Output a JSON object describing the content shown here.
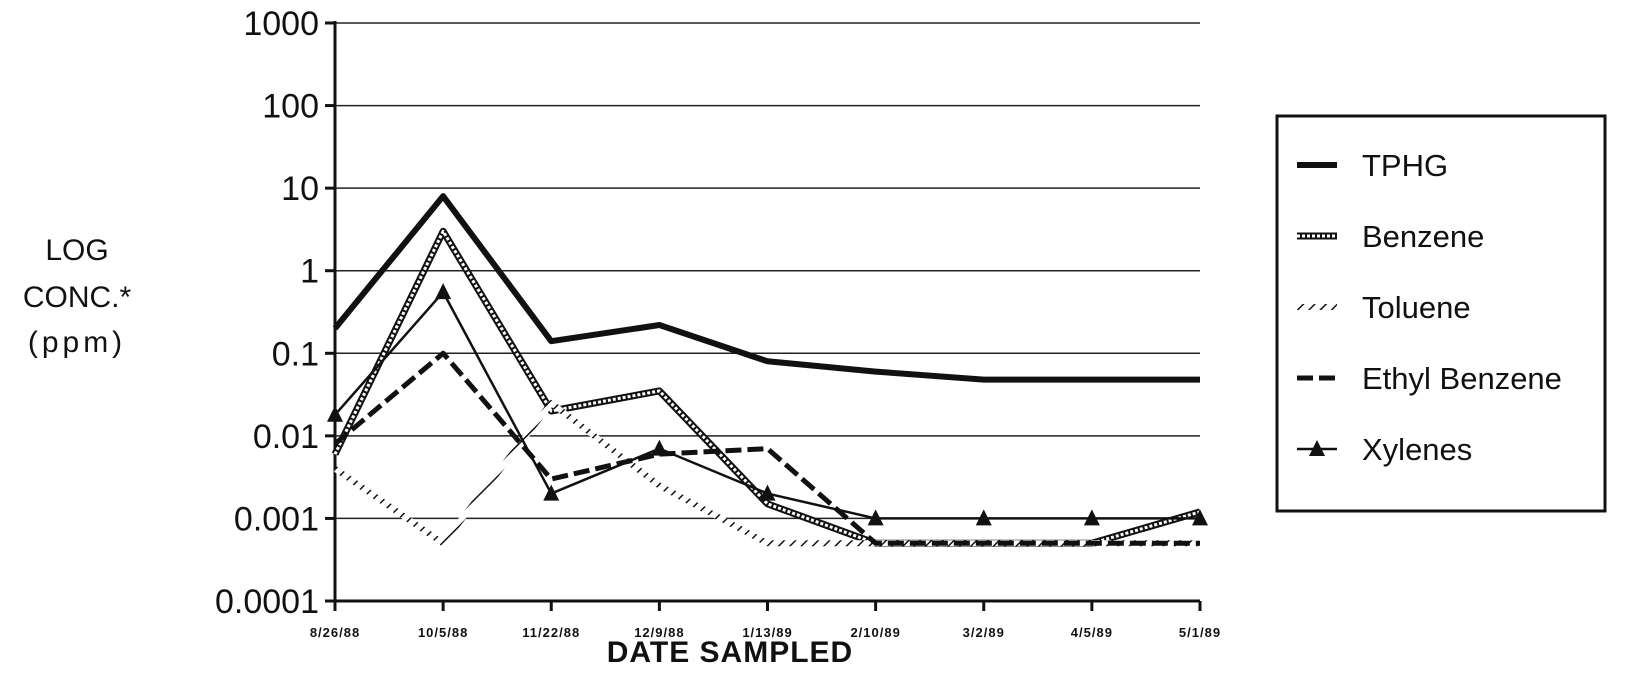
{
  "chart_data": {
    "type": "line",
    "title": "",
    "xlabel": "DATE SAMPLED",
    "ylabel_lines": [
      "LOG",
      "CONC.*",
      "(ppm)"
    ],
    "yscale": "log",
    "ylim": [
      0.0001,
      1000
    ],
    "yticks": [
      {
        "value": 0.0001,
        "label": "0.0001"
      },
      {
        "value": 0.001,
        "label": "0.001"
      },
      {
        "value": 0.01,
        "label": "0.01"
      },
      {
        "value": 0.1,
        "label": "0.1"
      },
      {
        "value": 1,
        "label": "1"
      },
      {
        "value": 10,
        "label": "10"
      },
      {
        "value": 100,
        "label": "100"
      },
      {
        "value": 1000,
        "label": "1000"
      }
    ],
    "categories": [
      "8/26/88",
      "10/5/88",
      "11/22/88",
      "12/9/88",
      "1/13/89",
      "2/10/89",
      "3/2/89",
      "4/5/89",
      "5/1/89"
    ],
    "grid": true,
    "legend_position": "right",
    "series": [
      {
        "name": "TPHG",
        "style": "solid-thick",
        "values": [
          0.2,
          8,
          0.14,
          0.22,
          0.08,
          0.06,
          0.048,
          0.048,
          0.048
        ]
      },
      {
        "name": "Benzene",
        "style": "hollow",
        "values": [
          0.006,
          3,
          0.02,
          0.035,
          0.0015,
          0.0005,
          0.0005,
          0.0005,
          0.0012
        ]
      },
      {
        "name": "Toluene",
        "style": "hatched",
        "values": [
          0.004,
          0.0005,
          0.025,
          0.0025,
          0.0005,
          0.0005,
          0.0005,
          0.0005,
          0.0005
        ]
      },
      {
        "name": "Ethyl Benzene",
        "style": "dashed",
        "values": [
          0.008,
          0.1,
          0.003,
          0.006,
          0.007,
          0.0005,
          0.0005,
          0.0005,
          0.0005
        ]
      },
      {
        "name": "Xylenes",
        "style": "triangle",
        "values": [
          0.018,
          0.55,
          0.002,
          0.007,
          0.002,
          0.001,
          0.001,
          0.001,
          0.001
        ]
      }
    ]
  }
}
